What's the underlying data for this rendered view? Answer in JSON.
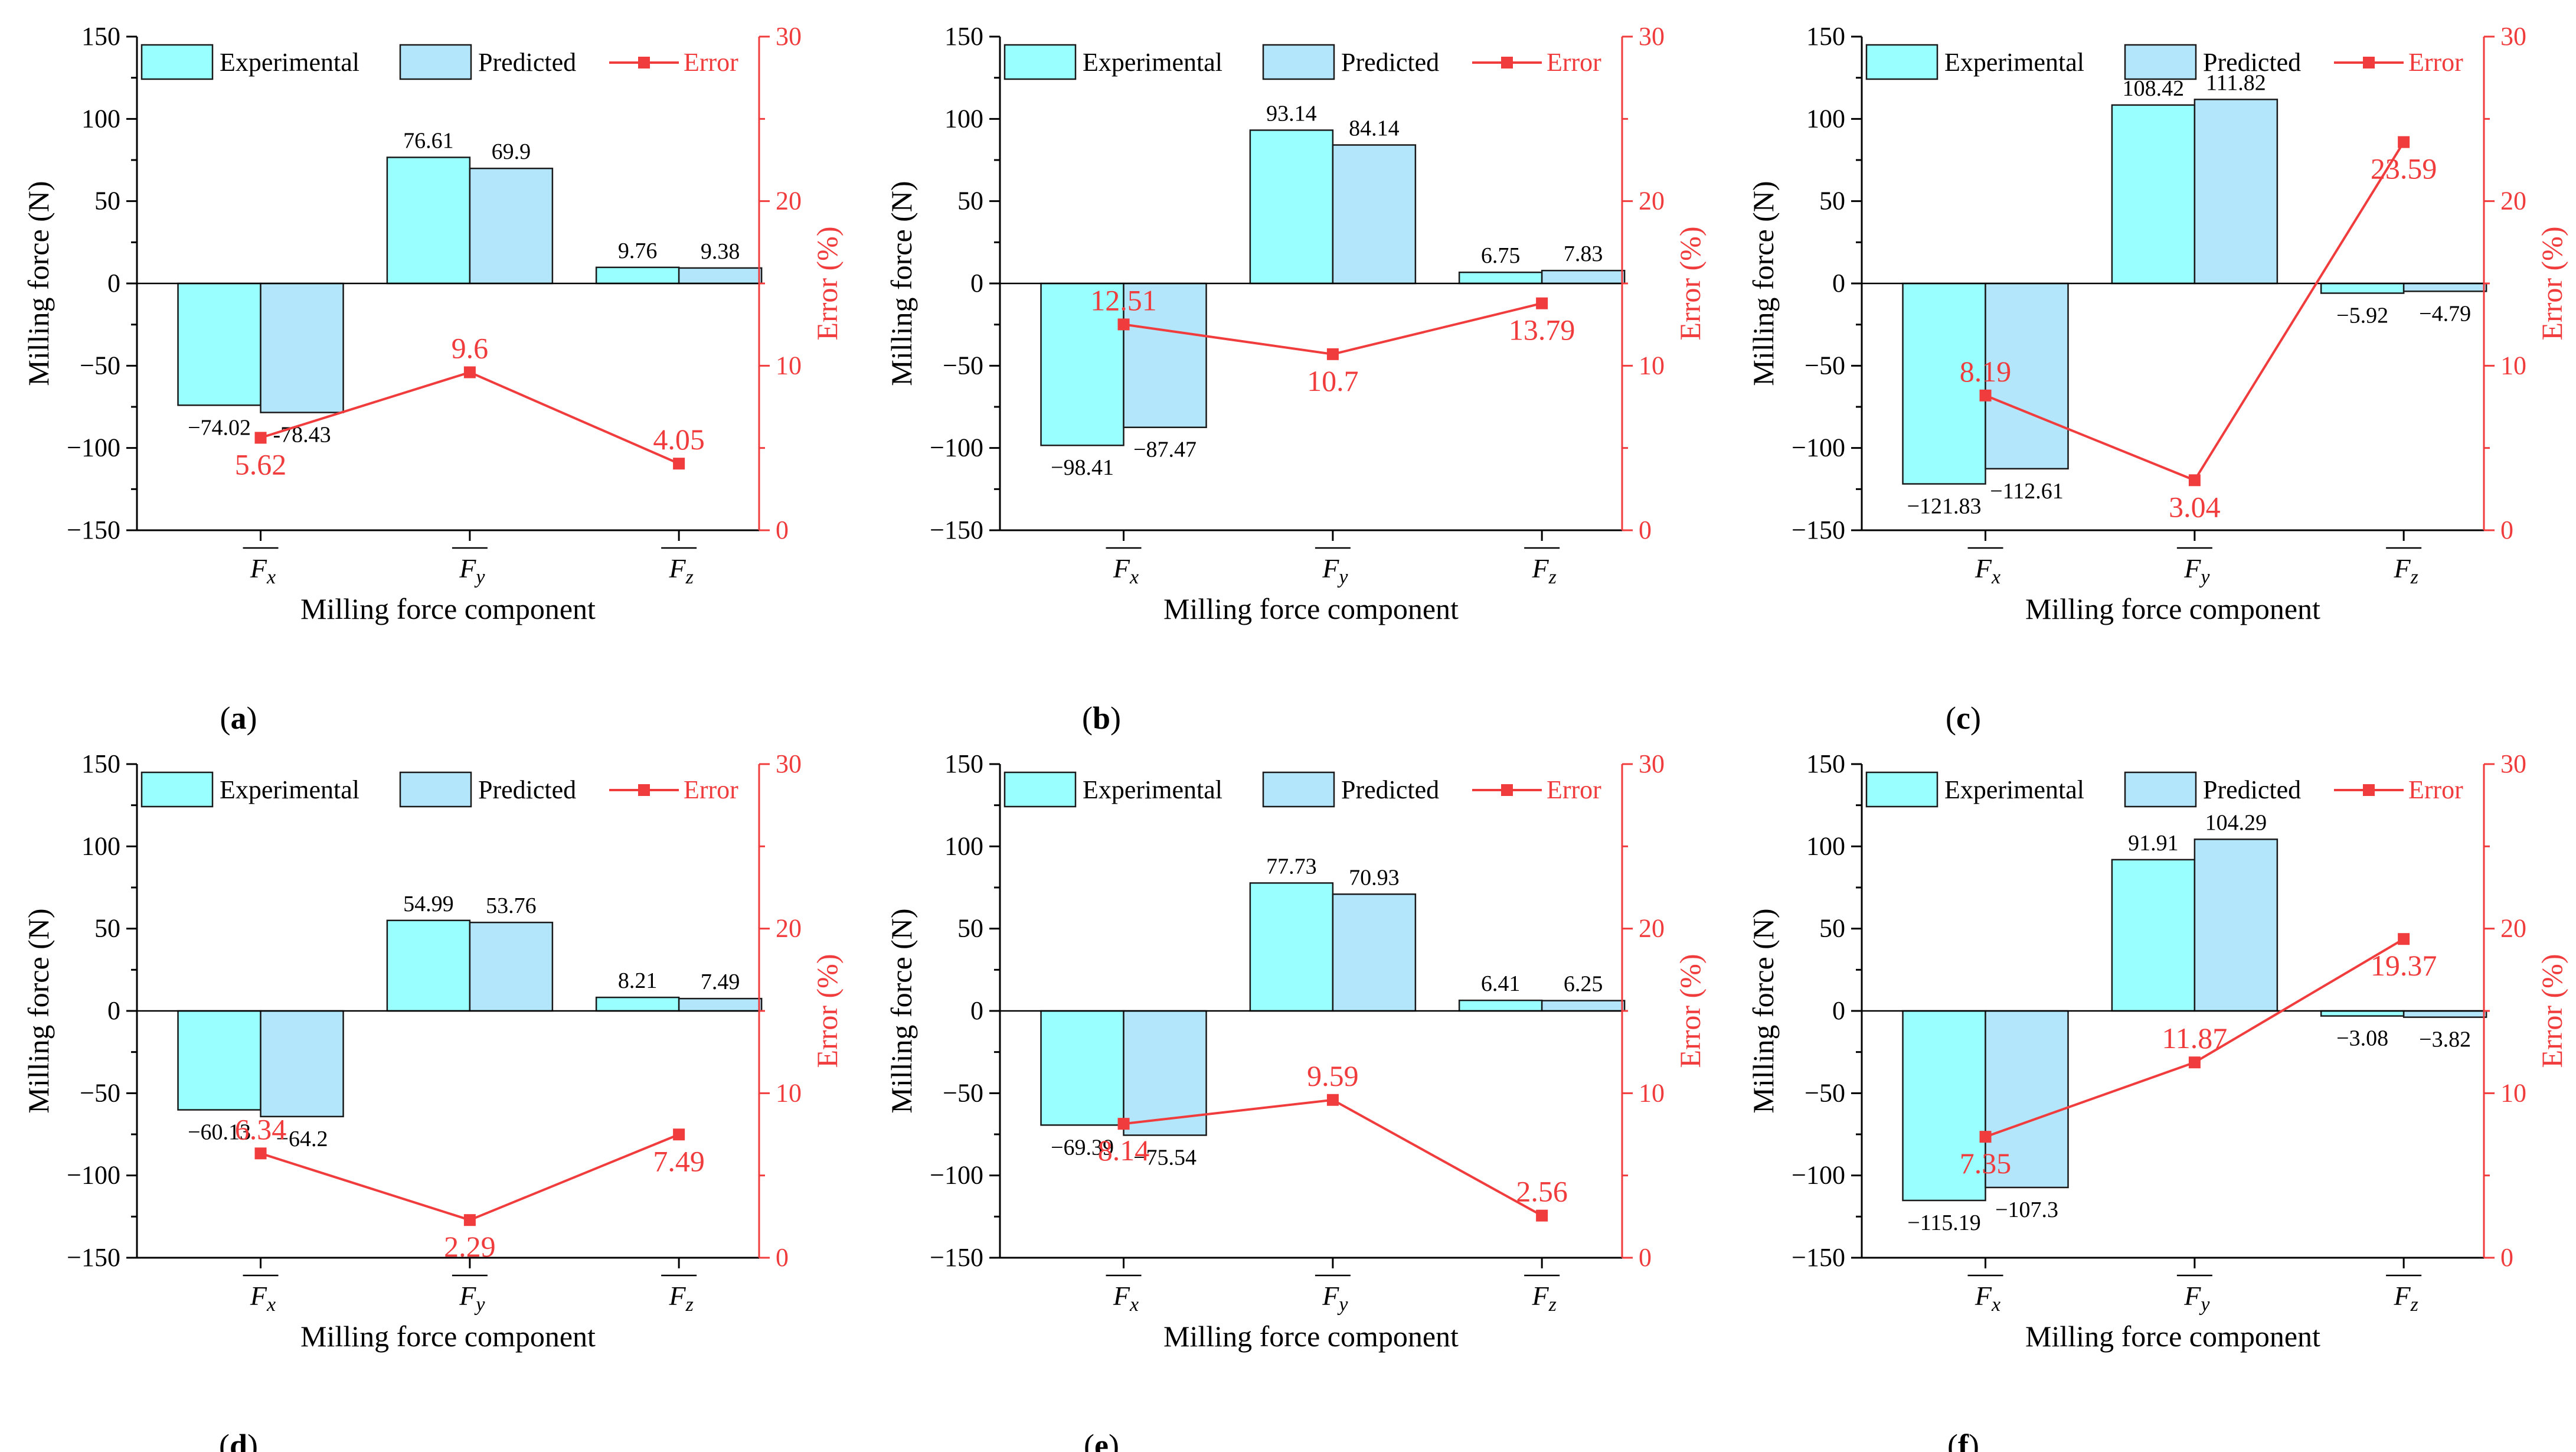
{
  "colors": {
    "experimental": "#99ffff",
    "predicted": "#b3e5fb",
    "error": "#f03c3c",
    "axis": "#000000"
  },
  "chart_data": [
    {
      "type": "bar",
      "panel_label": "a",
      "categories": [
        "F",
        "F",
        "F"
      ],
      "category_subscripts": [
        "x",
        "y",
        "z"
      ],
      "series": [
        {
          "name": "Experimental",
          "values": [
            -74.02,
            76.61,
            9.76
          ],
          "labels": [
            "−74.02",
            "76.61",
            "9.76"
          ]
        },
        {
          "name": "Predicted",
          "values": [
            -78.43,
            69.9,
            9.38
          ],
          "labels": [
            "-78.43",
            "69.9",
            "9.38"
          ]
        }
      ],
      "line_series": {
        "name": "Error",
        "values": [
          5.62,
          9.6,
          4.05
        ],
        "labels": [
          "5.62",
          "9.6",
          "4.05"
        ]
      },
      "xlabel": "Milling force component",
      "ylabel": "Milling force (N)",
      "y2label": "Error (%)",
      "ylim": [
        -150,
        150
      ],
      "y2lim": [
        0,
        30
      ],
      "yticks": [
        "−150",
        "−100",
        "−50",
        "0",
        "50",
        "100",
        "150"
      ],
      "y2ticks": [
        "0",
        "10",
        "20",
        "30"
      ],
      "legend": "top"
    },
    {
      "type": "bar",
      "panel_label": "b",
      "categories": [
        "F",
        "F",
        "F"
      ],
      "category_subscripts": [
        "x",
        "y",
        "z"
      ],
      "series": [
        {
          "name": "Experimental",
          "values": [
            -98.41,
            93.14,
            6.75
          ],
          "labels": [
            "−98.41",
            "93.14",
            "6.75"
          ]
        },
        {
          "name": "Predicted",
          "values": [
            -87.47,
            84.14,
            7.83
          ],
          "labels": [
            "−87.47",
            "84.14",
            "7.83"
          ]
        }
      ],
      "line_series": {
        "name": "Error",
        "values": [
          12.51,
          10.7,
          13.79
        ],
        "labels": [
          "12.51",
          "10.7",
          "13.79"
        ]
      },
      "xlabel": "Milling force component",
      "ylabel": "Milling force (N)",
      "y2label": "Error (%)",
      "ylim": [
        -150,
        150
      ],
      "y2lim": [
        0,
        30
      ],
      "yticks": [
        "−150",
        "−100",
        "−50",
        "0",
        "50",
        "100",
        "150"
      ],
      "y2ticks": [
        "0",
        "10",
        "20",
        "30"
      ],
      "legend": "top"
    },
    {
      "type": "bar",
      "panel_label": "c",
      "categories": [
        "F",
        "F",
        "F"
      ],
      "category_subscripts": [
        "x",
        "y",
        "z"
      ],
      "series": [
        {
          "name": "Experimental",
          "values": [
            -121.83,
            108.42,
            -5.92
          ],
          "labels": [
            "−121.83",
            "108.42",
            "−5.92"
          ]
        },
        {
          "name": "Predicted",
          "values": [
            -112.61,
            111.82,
            -4.79
          ],
          "labels": [
            "−112.61",
            "111.82",
            "−4.79"
          ]
        }
      ],
      "line_series": {
        "name": "Error",
        "values": [
          8.19,
          3.04,
          23.59
        ],
        "labels": [
          "8.19",
          "3.04",
          "23.59"
        ]
      },
      "xlabel": "Milling force component",
      "ylabel": "Milling force (N)",
      "y2label": "Error (%)",
      "ylim": [
        -150,
        150
      ],
      "y2lim": [
        0,
        30
      ],
      "yticks": [
        "−150",
        "−100",
        "−50",
        "0",
        "50",
        "100",
        "150"
      ],
      "y2ticks": [
        "0",
        "10",
        "20",
        "30"
      ],
      "legend": "top"
    },
    {
      "type": "bar",
      "panel_label": "d",
      "categories": [
        "F",
        "F",
        "F"
      ],
      "category_subscripts": [
        "x",
        "y",
        "z"
      ],
      "series": [
        {
          "name": "Experimental",
          "values": [
            -60.13,
            54.99,
            8.21
          ],
          "labels": [
            "−60.13",
            "54.99",
            "8.21"
          ]
        },
        {
          "name": "Predicted",
          "values": [
            -64.2,
            53.76,
            7.49
          ],
          "labels": [
            "−64.2",
            "53.76",
            "7.49"
          ]
        }
      ],
      "line_series": {
        "name": "Error",
        "values": [
          6.34,
          2.29,
          7.49
        ],
        "labels": [
          "6.34",
          "2.29",
          "7.49"
        ]
      },
      "xlabel": "Milling force component",
      "ylabel": "Milling force (N)",
      "y2label": "Error (%)",
      "ylim": [
        -150,
        150
      ],
      "y2lim": [
        0,
        30
      ],
      "yticks": [
        "−150",
        "−100",
        "−50",
        "0",
        "50",
        "100",
        "150"
      ],
      "y2ticks": [
        "0",
        "10",
        "20",
        "30"
      ],
      "legend": "top"
    },
    {
      "type": "bar",
      "panel_label": "e",
      "categories": [
        "F",
        "F",
        "F"
      ],
      "category_subscripts": [
        "x",
        "y",
        "z"
      ],
      "series": [
        {
          "name": "Experimental",
          "values": [
            -69.39,
            77.73,
            6.41
          ],
          "labels": [
            "−69.39",
            "77.73",
            "6.41"
          ]
        },
        {
          "name": "Predicted",
          "values": [
            -75.54,
            70.93,
            6.25
          ],
          "labels": [
            "−75.54",
            "70.93",
            "6.25"
          ]
        }
      ],
      "line_series": {
        "name": "Error",
        "values": [
          8.14,
          9.59,
          2.56
        ],
        "labels": [
          "8.14",
          "9.59",
          "2.56"
        ]
      },
      "xlabel": "Milling force component",
      "ylabel": "Milling force (N)",
      "y2label": "Error (%)",
      "ylim": [
        -150,
        150
      ],
      "y2lim": [
        0,
        30
      ],
      "yticks": [
        "−150",
        "−100",
        "−50",
        "0",
        "50",
        "100",
        "150"
      ],
      "y2ticks": [
        "0",
        "10",
        "20",
        "30"
      ],
      "legend": "top"
    },
    {
      "type": "bar",
      "panel_label": "f",
      "categories": [
        "F",
        "F",
        "F"
      ],
      "category_subscripts": [
        "x",
        "y",
        "z"
      ],
      "series": [
        {
          "name": "Experimental",
          "values": [
            -115.19,
            91.91,
            -3.08
          ],
          "labels": [
            "−115.19",
            "91.91",
            "−3.08"
          ]
        },
        {
          "name": "Predicted",
          "values": [
            -107.3,
            104.29,
            -3.82
          ],
          "labels": [
            "−107.3",
            "104.29",
            "−3.82"
          ]
        }
      ],
      "line_series": {
        "name": "Error",
        "values": [
          7.35,
          11.87,
          19.37
        ],
        "labels": [
          "7.35",
          "11.87",
          "19.37"
        ]
      },
      "xlabel": "Milling force component",
      "ylabel": "Milling force (N)",
      "y2label": "Error (%)",
      "ylim": [
        -150,
        150
      ],
      "y2lim": [
        0,
        30
      ],
      "yticks": [
        "−150",
        "−100",
        "−50",
        "0",
        "50",
        "100",
        "150"
      ],
      "y2ticks": [
        "0",
        "10",
        "20",
        "30"
      ],
      "legend": "top"
    }
  ]
}
